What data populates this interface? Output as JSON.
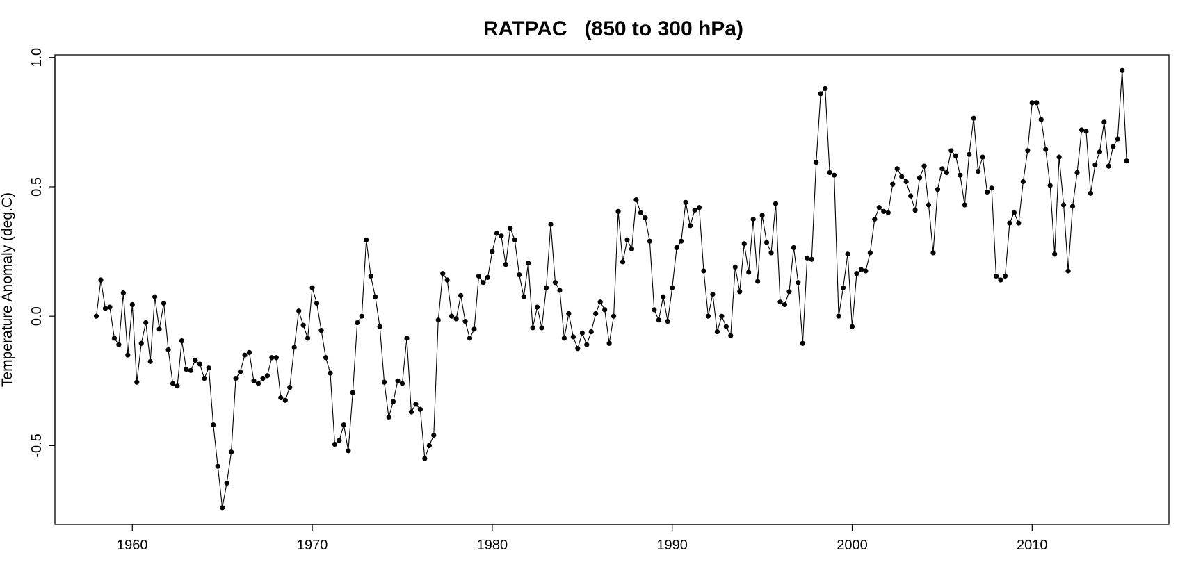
{
  "chart_data": {
    "type": "line",
    "title": "RATPAC   (850 to 300 hPa)",
    "xlabel": "",
    "ylabel": "Temperature Anomaly (deg.C)",
    "xlim": [
      1955.7,
      2017.6
    ],
    "ylim": [
      -0.805,
      1.01
    ],
    "x_ticks": [
      1960,
      1970,
      1980,
      1990,
      2000,
      2010
    ],
    "x_tick_labels": [
      "1960",
      "1970",
      "1980",
      "1990",
      "2000",
      "2010"
    ],
    "y_ticks": [
      -0.5,
      0.0,
      0.5,
      1.0
    ],
    "y_tick_labels": [
      "-0.5",
      "0.0",
      "0.5",
      "1.0"
    ],
    "grid": false,
    "legend": "none",
    "series": [
      {
        "marker": "filled-circle",
        "x_start": 1958.0,
        "x_step": 0.25,
        "values": [
          0.0,
          0.14,
          0.03,
          0.035,
          -0.085,
          -0.11,
          0.09,
          -0.15,
          0.045,
          -0.255,
          -0.105,
          -0.025,
          -0.175,
          0.075,
          -0.05,
          0.05,
          -0.13,
          -0.26,
          -0.27,
          -0.095,
          -0.205,
          -0.21,
          -0.17,
          -0.185,
          -0.24,
          -0.2,
          -0.42,
          -0.58,
          -0.74,
          -0.645,
          -0.525,
          -0.24,
          -0.215,
          -0.15,
          -0.14,
          -0.25,
          -0.26,
          -0.24,
          -0.23,
          -0.16,
          -0.16,
          -0.315,
          -0.325,
          -0.275,
          -0.12,
          0.02,
          -0.035,
          -0.085,
          0.11,
          0.05,
          -0.055,
          -0.16,
          -0.22,
          -0.495,
          -0.48,
          -0.42,
          -0.52,
          -0.295,
          -0.025,
          0.0,
          0.295,
          0.155,
          0.075,
          -0.04,
          -0.255,
          -0.39,
          -0.33,
          -0.25,
          -0.26,
          -0.085,
          -0.37,
          -0.34,
          -0.36,
          -0.55,
          -0.5,
          -0.46,
          -0.015,
          0.165,
          0.14,
          0.0,
          -0.01,
          0.08,
          -0.02,
          -0.085,
          -0.05,
          0.155,
          0.13,
          0.15,
          0.25,
          0.32,
          0.31,
          0.2,
          0.34,
          0.295,
          0.16,
          0.075,
          0.205,
          -0.045,
          0.035,
          -0.045,
          0.11,
          0.355,
          0.13,
          0.1,
          -0.085,
          0.01,
          -0.08,
          -0.125,
          -0.065,
          -0.11,
          -0.06,
          0.01,
          0.055,
          0.025,
          -0.105,
          0.0,
          0.405,
          0.21,
          0.295,
          0.26,
          0.45,
          0.4,
          0.38,
          0.29,
          0.025,
          -0.015,
          0.075,
          -0.02,
          0.11,
          0.265,
          0.29,
          0.44,
          0.35,
          0.41,
          0.42,
          0.175,
          0.0,
          0.085,
          -0.06,
          0.0,
          -0.04,
          -0.075,
          0.19,
          0.095,
          0.28,
          0.17,
          0.375,
          0.135,
          0.39,
          0.285,
          0.245,
          0.435,
          0.055,
          0.045,
          0.095,
          0.265,
          0.13,
          -0.105,
          0.225,
          0.22,
          0.595,
          0.86,
          0.88,
          0.555,
          0.545,
          0.0,
          0.11,
          0.24,
          -0.04,
          0.165,
          0.18,
          0.175,
          0.245,
          0.375,
          0.42,
          0.405,
          0.4,
          0.51,
          0.57,
          0.54,
          0.52,
          0.465,
          0.41,
          0.535,
          0.58,
          0.43,
          0.245,
          0.49,
          0.57,
          0.555,
          0.64,
          0.62,
          0.545,
          0.43,
          0.625,
          0.765,
          0.56,
          0.615,
          0.48,
          0.495,
          0.155,
          0.14,
          0.155,
          0.36,
          0.4,
          0.36,
          0.52,
          0.64,
          0.825,
          0.825,
          0.76,
          0.645,
          0.505,
          0.24,
          0.615,
          0.43,
          0.175,
          0.425,
          0.555,
          0.72,
          0.715,
          0.475,
          0.585,
          0.635,
          0.75,
          0.58,
          0.655,
          0.685,
          0.95,
          0.6
        ]
      }
    ],
    "colors": {
      "line": "#000000",
      "points": "#000000",
      "frame": "#000000"
    }
  }
}
